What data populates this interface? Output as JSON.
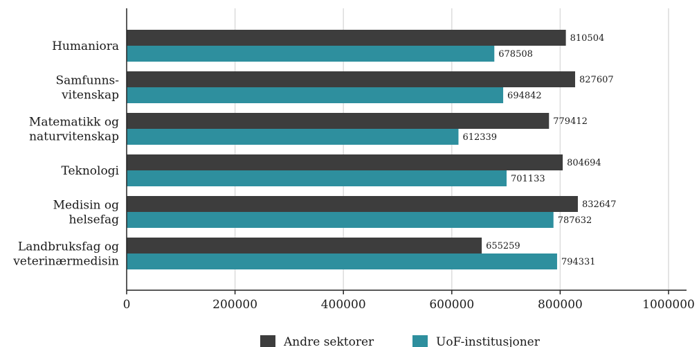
{
  "chart_data": {
    "type": "bar",
    "orientation": "horizontal",
    "categories": [
      [
        "Humaniora"
      ],
      [
        "Samfunns-",
        "vitenskap"
      ],
      [
        "Matematikk og",
        "naturvitenskap"
      ],
      [
        "Teknologi"
      ],
      [
        "Medisin og",
        "helsefag"
      ],
      [
        "Landbruksfag og",
        "veterinærmedisin"
      ]
    ],
    "series": [
      {
        "name": "Andre sektorer",
        "color": "#3d3d3d",
        "values": [
          810504,
          827607,
          779412,
          804694,
          832647,
          655259
        ]
      },
      {
        "name": "UoF-institusjoner",
        "color": "#2e8f9e",
        "values": [
          678508,
          694842,
          612339,
          701133,
          787632,
          794331
        ]
      }
    ],
    "xlim": [
      0,
      1000000
    ],
    "xticks": [
      0,
      200000,
      400000,
      600000,
      800000,
      1000000
    ],
    "xtick_labels": [
      "0",
      "200000",
      "400000",
      "600000",
      "800000",
      "1000000"
    ],
    "data_labels": true,
    "grid": "vertical",
    "legend": "bottom-center",
    "title": "",
    "xlabel": "",
    "ylabel": ""
  }
}
